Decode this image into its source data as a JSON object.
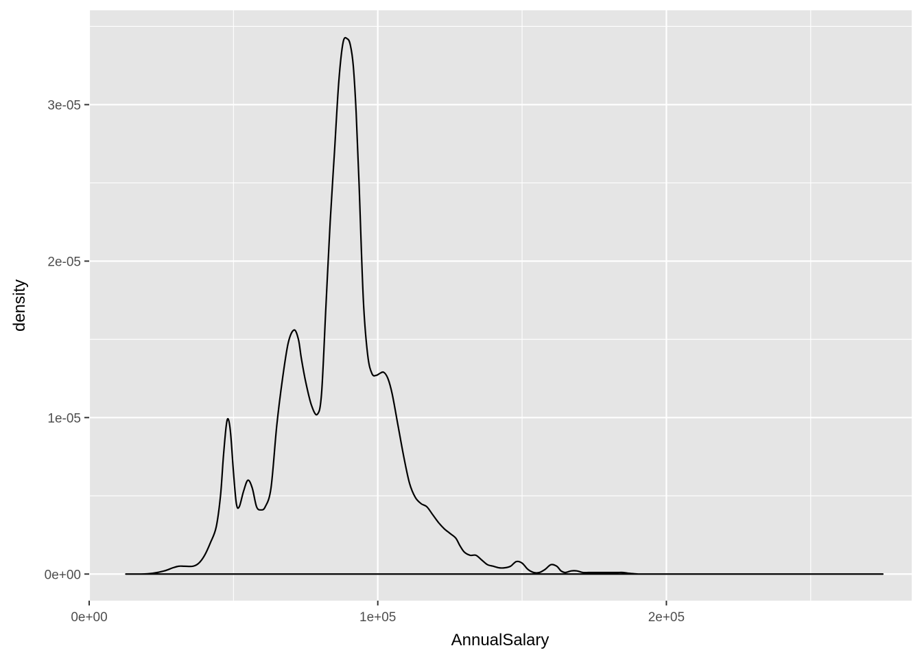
{
  "chart_data": {
    "type": "line",
    "geom": "density",
    "xlabel": "AnnualSalary",
    "ylabel": "density",
    "xlim": [
      0,
      285000
    ],
    "ylim": [
      -1.7e-06,
      3.603e-05
    ],
    "x_ticks": [
      {
        "value": 0,
        "label": "0e+00"
      },
      {
        "value": 100000,
        "label": "1e+05"
      },
      {
        "value": 200000,
        "label": "2e+05"
      }
    ],
    "x_minor_ticks": [
      50000,
      150000,
      250000
    ],
    "y_ticks": [
      {
        "value": 0,
        "label": "0e+00"
      },
      {
        "value": 1e-05,
        "label": "1e-05"
      },
      {
        "value": 2e-05,
        "label": "2e-05"
      },
      {
        "value": 3e-05,
        "label": "3e-05"
      }
    ],
    "y_minor_ticks": [
      5e-06,
      1.5e-05,
      2.5e-05,
      3.5e-05
    ],
    "grid": true,
    "colors": {
      "panel": "#e5e5e5",
      "grid": "#ffffff",
      "line": "#000000",
      "tick_text": "#4d4d4d",
      "tick": "#333333"
    },
    "series": [
      {
        "x": [
          12700,
          18000,
          22000,
          26000,
          29000,
          31000,
          33000,
          36000,
          38000,
          40000,
          42000,
          44000,
          45500,
          46500,
          47500,
          48200,
          49000,
          50000,
          51000,
          52000,
          53500,
          55000,
          56500,
          58000,
          59500,
          61000,
          63000,
          65000,
          67000,
          69000,
          71000,
          72500,
          73500,
          75000,
          77000,
          79000,
          80500,
          82000,
          83500,
          85000,
          86500,
          88000,
          89500,
          90500,
          91500,
          92500,
          93500,
          95000,
          96500,
          98000,
          99500,
          100500,
          102000,
          103500,
          105000,
          107000,
          109000,
          111000,
          113000,
          115000,
          117000,
          119000,
          121000,
          123000,
          125000,
          127000,
          128500,
          130000,
          132000,
          134000,
          136000,
          138000,
          140000,
          142000,
          144000,
          146000,
          148000,
          150000,
          152000,
          154000,
          156000,
          158000,
          160000,
          162000,
          163500,
          165000,
          167000,
          169000,
          171000,
          173000,
          175000,
          177000,
          179000,
          181000,
          183000,
          185000,
          187000,
          189000,
          191000,
          195000,
          200000,
          210000,
          220000,
          230000,
          240000,
          250000,
          260000,
          270000,
          275000
        ],
        "y": [
          0.0,
          0.0,
          5e-08,
          2e-07,
          4e-07,
          5e-07,
          5e-07,
          5e-07,
          7e-07,
          1.2e-06,
          2e-06,
          3e-06,
          5e-06,
          7.5e-06,
          9.5e-06,
          9.9e-06,
          9e-06,
          6.5e-06,
          4.5e-06,
          4.3e-06,
          5.3e-06,
          6e-06,
          5.5e-06,
          4.3e-06,
          4.1e-06,
          4.3e-06,
          5.5e-06,
          9.5e-06,
          1.25e-05,
          1.48e-05,
          1.56e-05,
          1.5e-05,
          1.38e-05,
          1.23e-05,
          1.08e-05,
          1.02e-05,
          1.15e-05,
          1.7e-05,
          2.25e-05,
          2.7e-05,
          3.15e-05,
          3.4e-05,
          3.42e-05,
          3.38e-05,
          3.25e-05,
          2.95e-05,
          2.5e-05,
          1.75e-05,
          1.4e-05,
          1.28e-05,
          1.27e-05,
          1.28e-05,
          1.29e-05,
          1.25e-05,
          1.15e-05,
          9.5e-06,
          7.5e-06,
          5.8e-06,
          4.9e-06,
          4.5e-06,
          4.3e-06,
          3.8e-06,
          3.3e-06,
          2.9e-06,
          2.6e-06,
          2.3e-06,
          1.8e-06,
          1.4e-06,
          1.2e-06,
          1.2e-06,
          9e-07,
          6e-07,
          5e-07,
          4e-07,
          4e-07,
          5e-07,
          8e-07,
          7e-07,
          3e-07,
          1e-07,
          1e-07,
          3e-07,
          6e-07,
          5e-07,
          2e-07,
          1e-07,
          2e-07,
          2e-07,
          1e-07,
          1e-07,
          1e-07,
          1e-07,
          1e-07,
          1e-07,
          1e-07,
          1e-07,
          5e-08,
          2e-08,
          0.0,
          0.0,
          0.0,
          0.0,
          0.0,
          0.0,
          0.0,
          0.0,
          0.0,
          0.0,
          0.0
        ]
      }
    ]
  }
}
